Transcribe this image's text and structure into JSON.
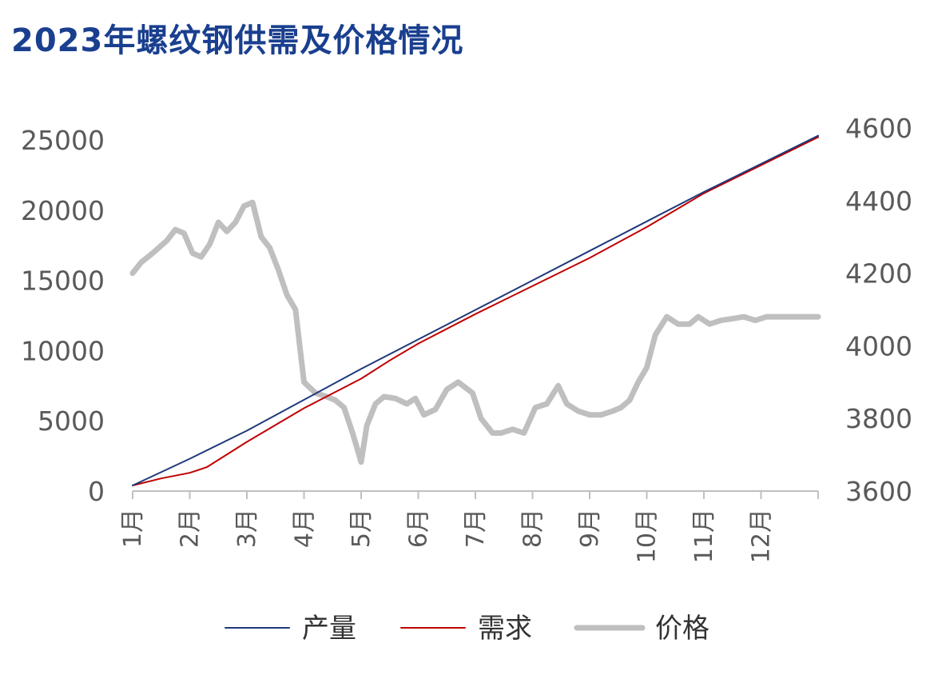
{
  "title": "2023年螺纹钢供需及价格情况",
  "colors": {
    "title": "#1a3f8f",
    "production": "#1f3a7a",
    "demand": "#c00000",
    "price": "#bfbfbf",
    "axis": "#bfbfbf"
  },
  "chart_data": {
    "type": "line",
    "title": "2023年螺纹钢供需及价格情况",
    "x_tick_labels": [
      "1月",
      "2月",
      "3月",
      "4月",
      "5月",
      "6月",
      "7月",
      "8月",
      "9月",
      "10月",
      "11月",
      "12月"
    ],
    "x_range": [
      0,
      12
    ],
    "left_axis": {
      "ylim": [
        0,
        25000
      ],
      "ticks": [
        0,
        5000,
        10000,
        15000,
        20000,
        25000
      ]
    },
    "right_axis": {
      "ylim": [
        3600,
        4600
      ],
      "ticks": [
        3600,
        3800,
        4000,
        4200,
        4400,
        4600
      ]
    },
    "legend": {
      "position": "bottom",
      "entries": [
        "产量",
        "需求",
        "价格"
      ]
    },
    "grid": false,
    "series": [
      {
        "name": "产量",
        "axis": "left",
        "x": [
          0,
          1,
          2,
          3,
          4,
          5,
          6,
          7,
          8,
          9,
          10,
          11,
          12
        ],
        "y": [
          400,
          2300,
          4300,
          6500,
          8700,
          10800,
          12900,
          15000,
          17100,
          19200,
          21300,
          23300,
          25300
        ]
      },
      {
        "name": "需求",
        "axis": "left",
        "x": [
          0,
          0.5,
          1,
          1.3,
          2,
          3,
          4,
          4.5,
          5,
          6,
          7,
          8,
          9,
          10,
          11,
          12
        ],
        "y": [
          400,
          900,
          1300,
          1700,
          3500,
          5900,
          8000,
          9300,
          10500,
          12600,
          14600,
          16600,
          18800,
          21200,
          23200,
          25200
        ]
      },
      {
        "name": "价格",
        "axis": "right",
        "x": [
          0,
          0.15,
          0.35,
          0.6,
          0.75,
          0.9,
          1.05,
          1.2,
          1.35,
          1.5,
          1.65,
          1.8,
          1.95,
          2.1,
          2.25,
          2.4,
          2.55,
          2.7,
          2.85,
          3.0,
          3.2,
          3.4,
          3.55,
          3.7,
          3.85,
          4.0,
          4.1,
          4.25,
          4.4,
          4.6,
          4.8,
          4.95,
          5.1,
          5.3,
          5.5,
          5.7,
          5.95,
          6.1,
          6.3,
          6.45,
          6.65,
          6.85,
          7.05,
          7.25,
          7.45,
          7.6,
          7.8,
          8.0,
          8.2,
          8.4,
          8.55,
          8.7,
          8.85,
          9.0,
          9.15,
          9.35,
          9.55,
          9.75,
          9.9,
          10.1,
          10.3,
          10.5,
          10.7,
          10.9,
          11.1,
          11.3,
          11.5,
          11.7,
          11.9,
          12.0
        ],
        "y": [
          4200,
          4230,
          4255,
          4290,
          4320,
          4310,
          4255,
          4245,
          4280,
          4340,
          4315,
          4340,
          4385,
          4395,
          4300,
          4270,
          4210,
          4140,
          4100,
          3900,
          3870,
          3860,
          3850,
          3830,
          3760,
          3680,
          3780,
          3840,
          3860,
          3855,
          3840,
          3855,
          3810,
          3825,
          3880,
          3900,
          3870,
          3800,
          3760,
          3760,
          3770,
          3760,
          3830,
          3840,
          3890,
          3840,
          3820,
          3810,
          3810,
          3820,
          3830,
          3850,
          3900,
          3940,
          4030,
          4080,
          4060,
          4060,
          4080,
          4060,
          4070,
          4075,
          4080,
          4070,
          4080,
          4080,
          4080,
          4080,
          4080,
          4080
        ]
      }
    ]
  }
}
